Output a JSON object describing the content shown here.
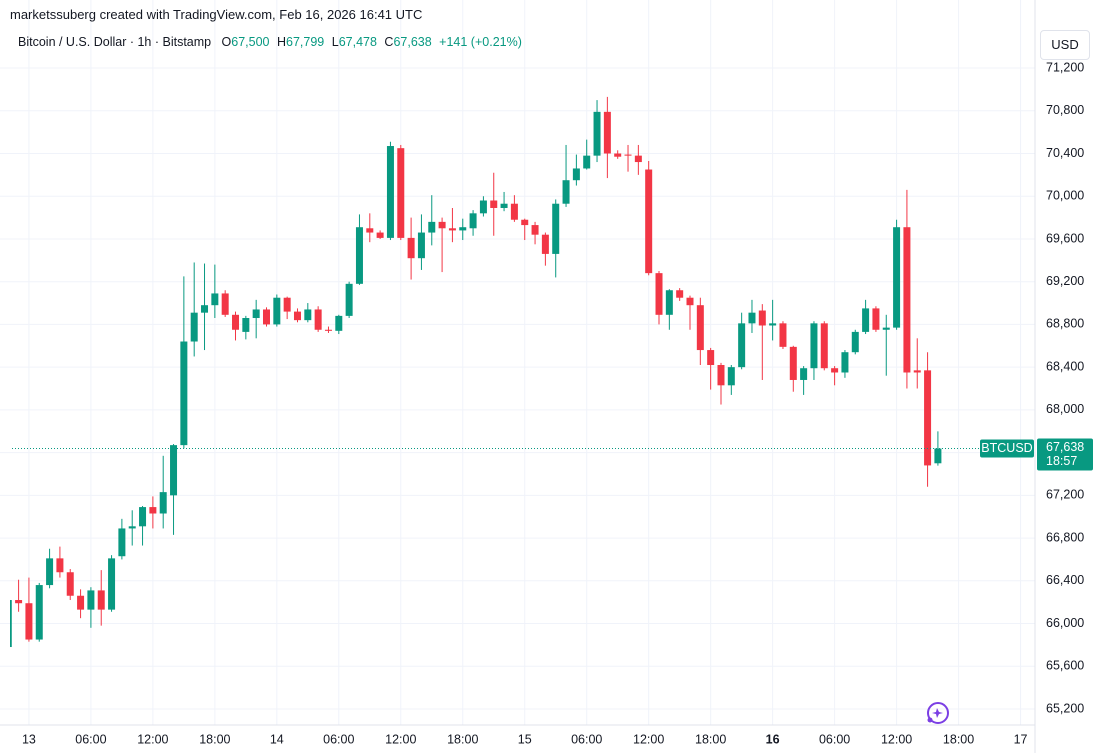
{
  "header": {
    "attribution": "marketssuberg created with TradingView.com, Feb 16, 2026 16:41 UTC"
  },
  "chart_data": {
    "type": "candlestick",
    "title": "Bitcoin / U.S. Dollar · 1h · Bitstamp",
    "ohlc_legend": {
      "open_label": "O",
      "open": "67,500",
      "high_label": "H",
      "high": "67,799",
      "low_label": "L",
      "low": "67,478",
      "close_label": "C",
      "close": "67,638",
      "change": "+141 (+0.21%)"
    },
    "currency": "USD",
    "last_price": {
      "symbol": "BTCUSD",
      "value": 67638,
      "label": "67,638",
      "countdown": "18:57"
    },
    "up_color": "#089981",
    "down_color": "#f23645",
    "grid": true,
    "x": [
      -2,
      -1,
      0,
      1,
      2,
      3,
      4,
      5,
      6,
      7,
      8,
      9,
      10,
      11,
      12,
      13,
      14,
      15,
      16,
      17,
      18,
      19,
      20,
      21,
      22,
      23,
      24,
      25,
      26,
      27,
      28,
      29,
      30,
      31,
      32,
      33,
      34,
      35,
      36,
      37,
      38,
      39,
      40,
      41,
      42,
      43,
      44,
      45,
      46,
      47,
      48,
      49,
      50,
      51,
      52,
      53,
      54,
      55,
      56,
      57,
      58,
      59,
      60,
      61,
      62,
      63,
      64,
      65,
      66,
      67,
      68,
      69,
      70,
      71,
      72,
      73,
      74,
      75,
      76,
      77,
      78,
      79,
      80,
      81,
      82,
      83,
      84,
      85,
      86,
      87,
      88
    ],
    "open": [
      65780,
      66220,
      66190,
      65850,
      66360,
      66610,
      66480,
      66260,
      66130,
      66310,
      66130,
      66630,
      66890,
      66910,
      67090,
      67030,
      67200,
      67670,
      68640,
      68910,
      68980,
      69090,
      68890,
      68730,
      68860,
      68940,
      68800,
      69050,
      68920,
      68840,
      68940,
      68750,
      68740,
      68880,
      69180,
      69700,
      69660,
      69610,
      70450,
      69610,
      69420,
      69660,
      69760,
      69700,
      69680,
      69700,
      69840,
      69960,
      69890,
      69930,
      69780,
      69730,
      69640,
      69460,
      69930,
      70150,
      70260,
      70380,
      70790,
      70400,
      70390,
      70380,
      70250,
      69280,
      68890,
      69120,
      69050,
      68980,
      68560,
      68420,
      68230,
      68400,
      68810,
      68930,
      68790,
      68810,
      68590,
      68280,
      68390,
      68810,
      68390,
      68350,
      68540,
      68730,
      68950,
      68750,
      68770,
      69710,
      68370,
      68370,
      67500
    ],
    "high": [
      66230,
      66410,
      66430,
      66380,
      66700,
      66720,
      66510,
      66320,
      66340,
      66500,
      66640,
      66980,
      67060,
      67100,
      67190,
      67570,
      67680,
      69250,
      69380,
      69370,
      69360,
      69120,
      68920,
      68880,
      69030,
      68960,
      69080,
      69060,
      68950,
      69000,
      68970,
      68780,
      68890,
      69200,
      69830,
      69840,
      69680,
      70510,
      70480,
      69800,
      69830,
      70010,
      69800,
      69890,
      69790,
      69870,
      70000,
      70220,
      70040,
      70010,
      69790,
      69760,
      69660,
      69970,
      70480,
      70390,
      70530,
      70900,
      70930,
      70430,
      70480,
      70480,
      70330,
      69300,
      69130,
      69140,
      69070,
      69050,
      68580,
      68440,
      68420,
      68910,
      69030,
      68990,
      69030,
      68830,
      68600,
      68410,
      68830,
      68830,
      68410,
      68560,
      68750,
      69030,
      68970,
      68890,
      69780,
      70060,
      68670,
      68540,
      67799
    ],
    "low": [
      65750,
      66110,
      65830,
      65830,
      66330,
      66430,
      66220,
      66050,
      65960,
      65980,
      66110,
      66600,
      66730,
      66730,
      66890,
      66890,
      66830,
      67640,
      68500,
      68560,
      68860,
      68870,
      68650,
      68660,
      68670,
      68780,
      68780,
      68850,
      68820,
      68820,
      68730,
      68720,
      68710,
      68860,
      69170,
      69570,
      69600,
      69590,
      69590,
      69220,
      69310,
      69540,
      69290,
      69570,
      69590,
      69630,
      69810,
      69630,
      69860,
      69760,
      69590,
      69550,
      69350,
      69240,
      69900,
      70100,
      70250,
      70320,
      70170,
      70350,
      70230,
      70200,
      69260,
      68800,
      68750,
      69020,
      68750,
      68420,
      68190,
      68050,
      68140,
      68380,
      68720,
      68280,
      68650,
      68570,
      68170,
      68140,
      68280,
      68370,
      68230,
      68300,
      68520,
      68710,
      68730,
      68320,
      68750,
      68200,
      68200,
      67280,
      67478
    ],
    "close": [
      66220,
      66190,
      65850,
      66360,
      66610,
      66480,
      66260,
      66130,
      66310,
      66130,
      66610,
      66890,
      66910,
      67090,
      67030,
      67230,
      67670,
      68640,
      68910,
      68980,
      69090,
      68890,
      68750,
      68860,
      68940,
      68800,
      69050,
      68920,
      68840,
      68940,
      68750,
      68740,
      68880,
      69180,
      69710,
      69660,
      69610,
      70470,
      69610,
      69420,
      69660,
      69760,
      69700,
      69680,
      69710,
      69840,
      69960,
      69890,
      69930,
      69780,
      69730,
      69640,
      69460,
      69930,
      70150,
      70260,
      70380,
      70790,
      70400,
      70370,
      70380,
      70320,
      69280,
      68890,
      69120,
      69050,
      68980,
      68560,
      68420,
      68230,
      68400,
      68810,
      68910,
      68790,
      68810,
      68590,
      68280,
      68390,
      68810,
      68390,
      68350,
      68540,
      68730,
      68950,
      68750,
      68770,
      69710,
      68350,
      68350,
      67480,
      67638
    ],
    "xlim": [
      -2.8,
      97.4
    ],
    "xticks": [
      {
        "value": 0,
        "label": "13"
      },
      {
        "value": 6,
        "label": "06:00"
      },
      {
        "value": 12,
        "label": "12:00"
      },
      {
        "value": 18,
        "label": "18:00"
      },
      {
        "value": 24,
        "label": "14"
      },
      {
        "value": 30,
        "label": "06:00"
      },
      {
        "value": 36,
        "label": "12:00"
      },
      {
        "value": 42,
        "label": "18:00"
      },
      {
        "value": 48,
        "label": "15"
      },
      {
        "value": 54,
        "label": "06:00"
      },
      {
        "value": 60,
        "label": "12:00"
      },
      {
        "value": 66,
        "label": "18:00"
      },
      {
        "value": 72,
        "label": "16"
      },
      {
        "value": 78,
        "label": "06:00"
      },
      {
        "value": 84,
        "label": "12:00"
      },
      {
        "value": 90,
        "label": "18:00"
      },
      {
        "value": 96,
        "label": "17"
      }
    ],
    "ylim": [
      65050,
      71603
    ],
    "yticks": [
      {
        "value": 65200,
        "label": "65,200"
      },
      {
        "value": 65600,
        "label": "65,600"
      },
      {
        "value": 66000,
        "label": "66,000"
      },
      {
        "value": 66400,
        "label": "66,400"
      },
      {
        "value": 66800,
        "label": "66,800"
      },
      {
        "value": 67200,
        "label": "67,200"
      },
      {
        "value": 67600,
        "label": "67,600"
      },
      {
        "value": 68000,
        "label": "68,000"
      },
      {
        "value": 68400,
        "label": "68,400"
      },
      {
        "value": 68800,
        "label": "68,800"
      },
      {
        "value": 69200,
        "label": "69,200"
      },
      {
        "value": 69600,
        "label": "69,600"
      },
      {
        "value": 70000,
        "label": "70,000"
      },
      {
        "value": 70400,
        "label": "70,400"
      },
      {
        "value": 70800,
        "label": "70,800"
      },
      {
        "value": 71200,
        "label": "71,200"
      }
    ]
  }
}
